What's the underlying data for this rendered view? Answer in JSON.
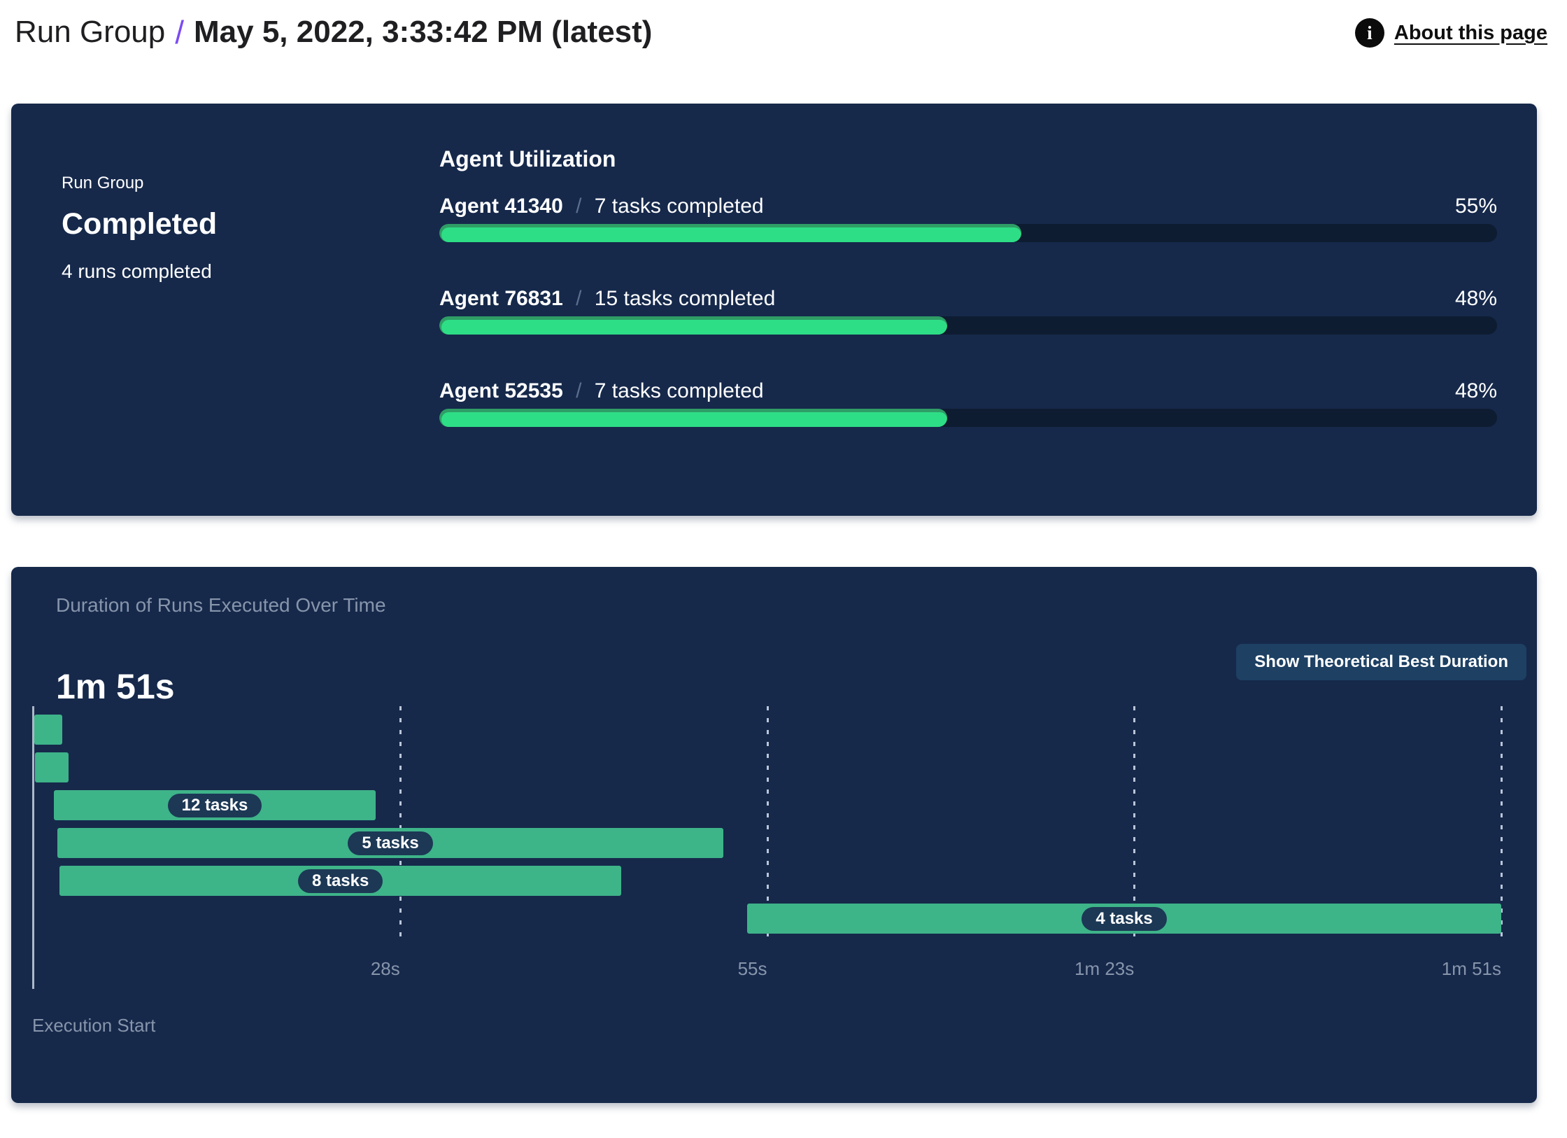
{
  "header": {
    "breadcrumb_root": "Run Group",
    "separator": "/",
    "title": "May 5, 2022, 3:33:42 PM (latest)",
    "about_link": "About this page",
    "info_icon": "info-icon"
  },
  "colors": {
    "panel_navy": "#16294b",
    "progress_track": "#0e1c31",
    "progress_green": "#2ede86",
    "progress_green_dark": "#2f9d66",
    "gantt_green": "#3eb489",
    "pill_navy": "#1c3855",
    "button_navy": "#1d4063",
    "muted_text": "#8795ab",
    "accent_purple": "#7c4bf2"
  },
  "status_panel": {
    "label": "Run Group",
    "status": "Completed",
    "runs_completed": "4 runs completed",
    "utilization_title": "Agent Utilization",
    "agent_separator": "/",
    "agents": [
      {
        "name": "Agent 41340",
        "tasks": "7 tasks completed",
        "percent": "55%",
        "value": 55
      },
      {
        "name": "Agent 76831",
        "tasks": "15 tasks completed",
        "percent": "48%",
        "value": 48
      },
      {
        "name": "Agent 52535",
        "tasks": "7 tasks completed",
        "percent": "48%",
        "value": 48
      }
    ]
  },
  "chart_data": {
    "type": "gantt",
    "title": "Duration of Runs Executed Over Time",
    "total_duration_label": "1m 51s",
    "total_seconds": 111,
    "button_label": "Show Theoretical Best Duration",
    "x_axis_label": "Execution Start",
    "x_range_seconds": [
      0,
      111
    ],
    "x_ticks": [
      {
        "label": "28s",
        "seconds": 27.75
      },
      {
        "label": "55s",
        "seconds": 55.5
      },
      {
        "label": "1m 23s",
        "seconds": 83.25
      },
      {
        "label": "1m 51s",
        "seconds": 111
      }
    ],
    "bars": [
      {
        "start": 0.1,
        "end": 2.2,
        "label": ""
      },
      {
        "start": 0.15,
        "end": 2.7,
        "label": ""
      },
      {
        "start": 1.6,
        "end": 25.9,
        "label": "12 tasks"
      },
      {
        "start": 1.85,
        "end": 52.2,
        "label": "5 tasks"
      },
      {
        "start": 2.0,
        "end": 44.5,
        "label": "8 tasks"
      },
      {
        "start": 54.0,
        "end": 111.0,
        "label": "4 tasks"
      }
    ]
  }
}
